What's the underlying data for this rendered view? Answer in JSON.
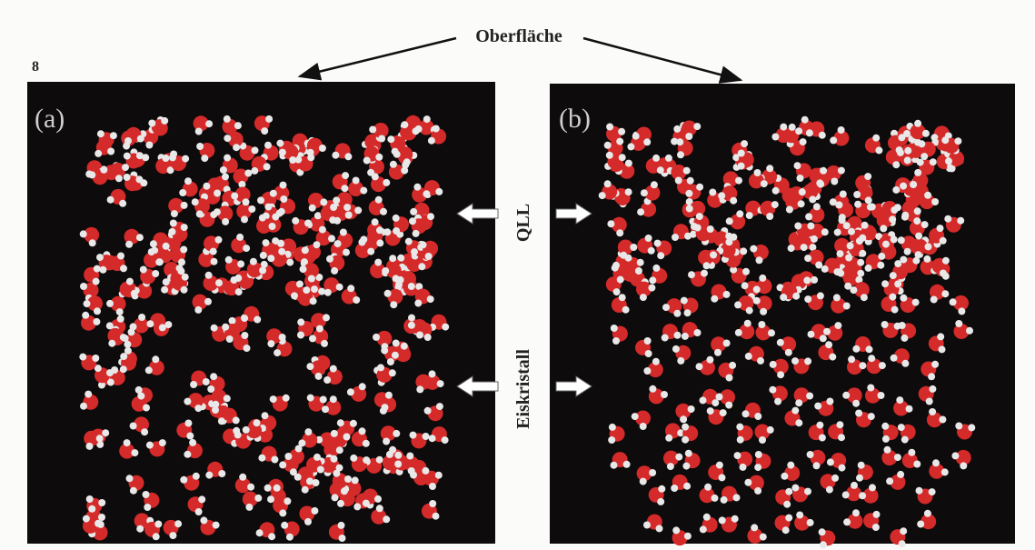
{
  "header": {
    "label": "Oberfläche",
    "figure_number": "8"
  },
  "panels": [
    {
      "label": "(a)"
    },
    {
      "label": "(b)"
    }
  ],
  "annotations": {
    "top": "QLL",
    "bottom": "Eiskristall"
  }
}
